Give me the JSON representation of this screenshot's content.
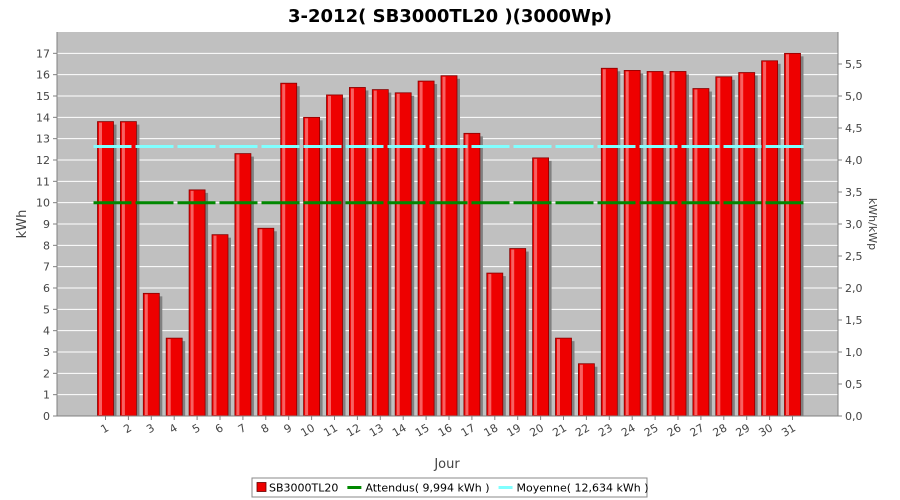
{
  "chart_data": {
    "type": "bar",
    "title": "3-2012( SB3000TL20 )(3000Wp)",
    "xlabel": "Jour",
    "ylabel": "kWh",
    "ylabel_right": "kWh/kWp",
    "categories": [
      "1",
      "2",
      "3",
      "4",
      "5",
      "6",
      "7",
      "8",
      "9",
      "10",
      "11",
      "12",
      "13",
      "14",
      "15",
      "16",
      "17",
      "18",
      "19",
      "20",
      "21",
      "22",
      "23",
      "24",
      "25",
      "26",
      "27",
      "28",
      "29",
      "30",
      "31"
    ],
    "series": [
      {
        "name": "SB3000TL20",
        "type": "bar",
        "color": "#ee0000",
        "values": [
          13.8,
          13.8,
          5.75,
          3.65,
          10.6,
          8.5,
          12.3,
          8.8,
          15.6,
          14.0,
          15.05,
          15.4,
          15.3,
          15.15,
          15.7,
          15.95,
          13.25,
          6.7,
          7.85,
          12.1,
          3.65,
          2.45,
          16.3,
          16.2,
          16.15,
          16.15,
          15.35,
          15.9,
          16.1,
          16.65,
          17.0
        ]
      },
      {
        "name": "Attendus( 9,994 kWh )",
        "type": "line",
        "color": "#008800",
        "value": 9.994
      },
      {
        "name": "Moyenne( 12,634 kWh )",
        "type": "line",
        "color": "#80ffff",
        "value": 12.634
      }
    ],
    "ylim": [
      0,
      18
    ],
    "yticks": [
      0,
      1,
      2,
      3,
      4,
      5,
      6,
      7,
      8,
      9,
      10,
      11,
      12,
      13,
      14,
      15,
      16,
      17
    ],
    "ylim_right": [
      0,
      6
    ],
    "yticks_right": [
      "0,0",
      "0,5",
      "1,0",
      "1,5",
      "2,0",
      "2,5",
      "3,0",
      "3,5",
      "4,0",
      "4,5",
      "5,0",
      "5,5"
    ],
    "grid": true,
    "legend_position": "bottom",
    "colors": {
      "plot_background": "#c0c0c0",
      "grid": "#ffffff",
      "bar_shadow": "#808080"
    }
  }
}
